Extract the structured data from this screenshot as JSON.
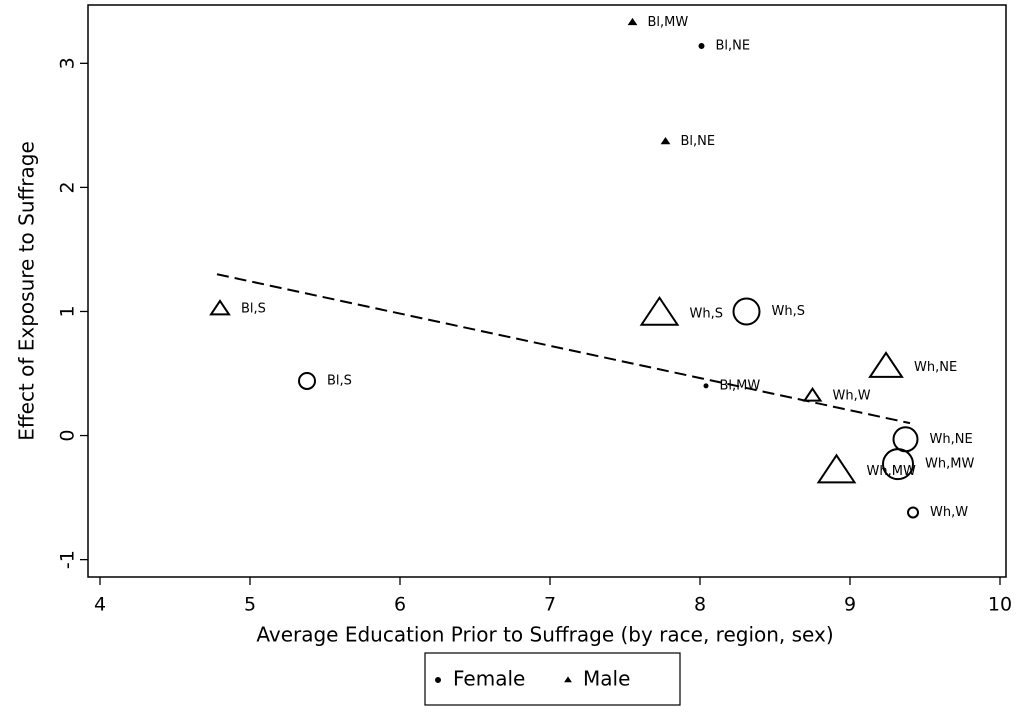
{
  "chart_data": {
    "type": "scatter",
    "x_label": "Average Education Prior to Suffrage (by race, region, sex)",
    "y_label": "Effect of Exposure to Suffrage",
    "xlim": [
      3.92,
      10.04
    ],
    "xticks": [
      4,
      5,
      6,
      7,
      8,
      9,
      10
    ],
    "ylim": [
      -1.14,
      3.47
    ],
    "yticks": [
      -1,
      0,
      1,
      2,
      3
    ],
    "series": [
      {
        "name": "Female",
        "marker": "circle",
        "color": "#000000",
        "x": [
          8.01,
          5.38,
          8.04,
          8.31,
          9.37,
          9.32,
          9.42
        ],
        "values": [
          3.14,
          0.44,
          0.4,
          1.0,
          -0.03,
          -0.23,
          -0.62
        ],
        "sizes": [
          2,
          8,
          1.5,
          13,
          12,
          15,
          5
        ],
        "labels": [
          "Bl,NE",
          "Bl,S",
          "Bl,MW",
          "Wh,S",
          "Wh,NE",
          "Wh,MW",
          "Wh,W"
        ]
      },
      {
        "name": "Male",
        "marker": "triangle",
        "color": "#000000",
        "x": [
          7.55,
          7.77,
          4.8,
          7.73,
          9.24,
          8.75,
          8.91
        ],
        "values": [
          3.33,
          2.37,
          1.02,
          0.98,
          0.55,
          0.32,
          -0.29
        ],
        "sizes": [
          3,
          3,
          9,
          18,
          16,
          8,
          18
        ],
        "labels": [
          "Bl,MW",
          "Bl,NE",
          "Bl,S",
          "Wh,S",
          "Wh,NE",
          "Wh,W",
          "Wh,MW"
        ]
      }
    ],
    "fit_line": {
      "x": [
        4.78,
        9.4
      ],
      "values": [
        1.3,
        0.1
      ]
    }
  }
}
